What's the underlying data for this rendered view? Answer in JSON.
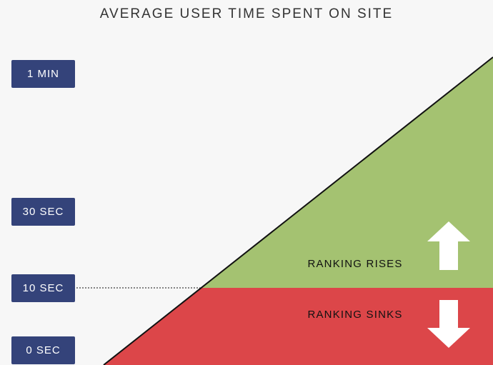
{
  "chart_data": {
    "type": "area",
    "title": "AVERAGE USER TIME SPENT ON SITE",
    "y_ticks": [
      {
        "label": "0 SEC",
        "value": 0
      },
      {
        "label": "10 SEC",
        "value": 10
      },
      {
        "label": "30 SEC",
        "value": 30
      },
      {
        "label": "1 MIN",
        "value": 60
      }
    ],
    "threshold": {
      "value": 10
    },
    "zones": [
      {
        "label": "RANKING RISES",
        "direction": "up",
        "color": "#a4c271"
      },
      {
        "label": "RANKING SINKS",
        "direction": "down",
        "color": "#dc4649"
      }
    ],
    "colors": {
      "tick_box": "#34437a",
      "line": "#111111",
      "background": "#f7f7f7"
    }
  }
}
